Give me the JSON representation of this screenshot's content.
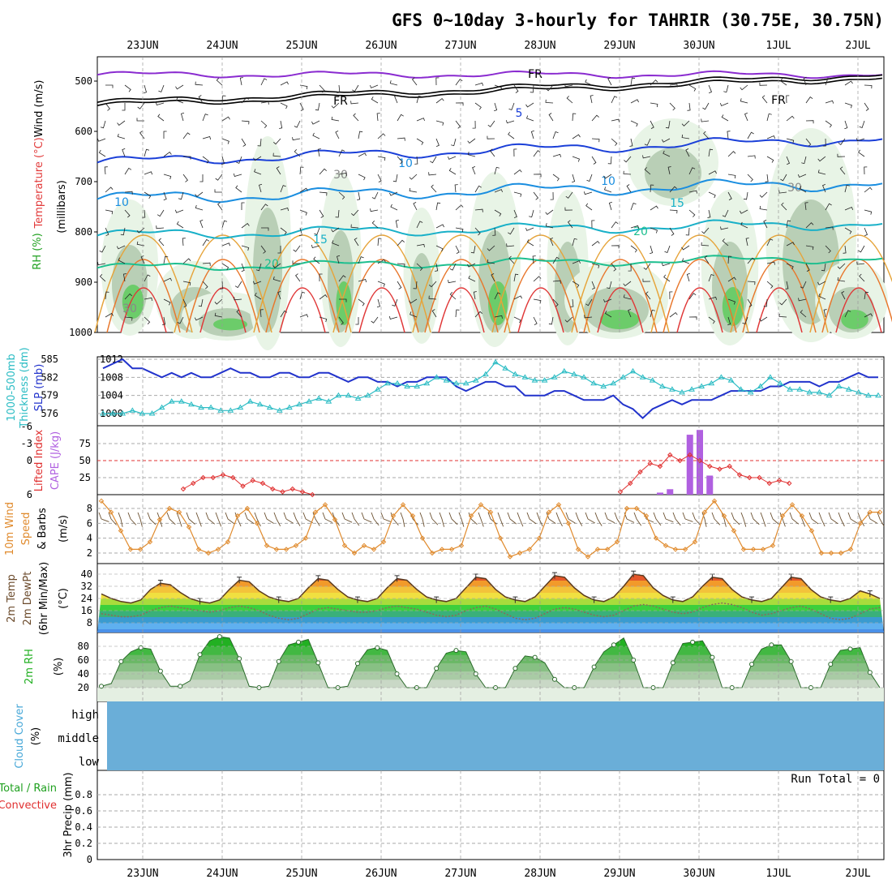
{
  "title": "GFS 0~10day 3-hourly for TAHRIR (30.75E, 30.75N)",
  "colors": {
    "wind_temp": "#000000",
    "temperature": "#e23b3b",
    "rh": "#1fa01f",
    "thickness": "#2bbcc4",
    "slp": "#2233cc",
    "lifted_index": "#e03030",
    "cape": "#b060e0",
    "wind10": "#e08a2c",
    "temp2m": "#6b4a2b",
    "rh2m": "#22b022",
    "cloud": "#6aaed8",
    "conv": "#e03030",
    "rain": "#1fa01f"
  },
  "chart_data": [
    {
      "type": "heatmap",
      "panel": "upper-air",
      "ylabel_parts": [
        "Temperature",
        " (°C)",
        "Wind (m/s)"
      ],
      "ylabel_unit": "(millibars)",
      "rh_label": "RH (%)",
      "yticks": [
        500,
        600,
        700,
        800,
        900,
        1000
      ],
      "ylim": [
        1000,
        450
      ],
      "dates": [
        "23JUN",
        "24JUN",
        "25JUN",
        "26JUN",
        "27JUN",
        "28JUN",
        "29JUN",
        "30JUN",
        "1JUL",
        "2JUL"
      ],
      "temperature_contour_labels": [
        "FR",
        "FR",
        "FR",
        "5",
        "10",
        "10",
        "10",
        "15",
        "15",
        "20",
        "20",
        "30",
        "30",
        "30"
      ]
    },
    {
      "type": "line",
      "panel": "thickness-slp",
      "ylabel_left": [
        "1000-500mb",
        "Thickness (dm)"
      ],
      "ylabel_right": "SLP (mb)",
      "yticks_thickness": [
        576,
        579,
        582,
        585
      ],
      "yticks_slp": [
        1000,
        1004,
        1008,
        1012
      ],
      "series": [
        {
          "name": "SLP (mb)",
          "values": [
            1010,
            1011,
            1012,
            1010,
            1010,
            1009,
            1008,
            1009,
            1008,
            1009,
            1008,
            1008,
            1009,
            1010,
            1009,
            1009,
            1008,
            1008,
            1009,
            1009,
            1008,
            1008,
            1009,
            1009,
            1008,
            1007,
            1008,
            1008,
            1007,
            1007,
            1006,
            1007,
            1007,
            1008,
            1008,
            1008,
            1006,
            1005,
            1006,
            1007,
            1007,
            1006,
            1006,
            1004,
            1004,
            1004,
            1005,
            1005,
            1004,
            1003,
            1003,
            1003,
            1004,
            1002,
            1001,
            999,
            1001,
            1002,
            1003,
            1002,
            1003,
            1003,
            1003,
            1004,
            1005,
            1005,
            1005,
            1005,
            1006,
            1006,
            1007,
            1007,
            1007,
            1006,
            1007,
            1007,
            1008,
            1009,
            1008,
            1008
          ]
        },
        {
          "name": "1000-500mb Thickness (dm)",
          "values": [
            576,
            576,
            576,
            576.5,
            576,
            576,
            577,
            578,
            578,
            577.5,
            577,
            577,
            576.5,
            576.5,
            577,
            578,
            577.5,
            577,
            576.5,
            577,
            577.5,
            578,
            578.5,
            578,
            579,
            579,
            578.5,
            579,
            580,
            581,
            581,
            580.5,
            580.5,
            581,
            582,
            581.5,
            581,
            581,
            581.5,
            582.5,
            584.5,
            583.5,
            582.5,
            582,
            581.5,
            581.5,
            582,
            583,
            582.5,
            582,
            581,
            580.5,
            581,
            582,
            583,
            582,
            581.5,
            580.5,
            580,
            579.5,
            580,
            580.5,
            581,
            582,
            581.5,
            580,
            579.5,
            580.5,
            582,
            581,
            580,
            580,
            579.5,
            579.5,
            579,
            580.5,
            580,
            579.5,
            579,
            579
          ]
        }
      ]
    },
    {
      "type": "bar",
      "panel": "li-cape",
      "ylabel_left": "Lifted Index",
      "ylabel_right": "CAPE (J/kg)",
      "yticks_li": [
        6,
        0,
        -3,
        -6
      ],
      "yticks_li_labels": [
        "6",
        "0",
        "-3",
        "-6"
      ],
      "yticks_cape": [
        25,
        50,
        75
      ],
      "series": [
        {
          "name": "Lifted Index",
          "x_hours": [
            24,
            27,
            30,
            33,
            36,
            39,
            42,
            45,
            48,
            51,
            54,
            57,
            60,
            63,
            156,
            159,
            162,
            165,
            168,
            171,
            174,
            177,
            180,
            183,
            186,
            189,
            192,
            195,
            198,
            201,
            204,
            207
          ],
          "values": [
            5,
            4,
            3,
            3,
            2.5,
            3,
            4.5,
            3.5,
            4,
            5,
            5.5,
            5,
            5.5,
            6,
            5.5,
            4,
            2,
            0.5,
            1,
            -1,
            0,
            -1,
            0,
            1,
            1.5,
            1,
            2.5,
            3,
            3,
            4,
            3.5,
            4
          ]
        },
        {
          "name": "CAPE (J/kg)",
          "x_hours": [
            168,
            171,
            174,
            177,
            180,
            183,
            186
          ],
          "values": [
            3,
            8,
            0,
            88,
            95,
            28,
            0
          ]
        }
      ]
    },
    {
      "type": "line",
      "panel": "wind10m",
      "ylabel_parts": [
        "10m Wind",
        "Speed",
        "& Barbs",
        "(m/s)"
      ],
      "yticks": [
        2,
        4,
        6,
        8
      ],
      "series": [
        {
          "name": "10m Wind Speed",
          "values": [
            9,
            7.5,
            5,
            2.5,
            2.5,
            3.5,
            6.5,
            8,
            7.5,
            5.5,
            2.5,
            2,
            2.5,
            3.5,
            7,
            8,
            6,
            3,
            2.5,
            2.5,
            3,
            4,
            7.5,
            8.5,
            6.5,
            3,
            2,
            3,
            2.5,
            3.5,
            7,
            8.5,
            7,
            4,
            2,
            2.5,
            2.5,
            3,
            7,
            8.5,
            7.5,
            4,
            1.5,
            2,
            2.5,
            4,
            7.5,
            8.5,
            6,
            2.5,
            1.5,
            2.5,
            2.5,
            3.5,
            8,
            8,
            7,
            4,
            3,
            2.5,
            2.5,
            3.5,
            7.5,
            9,
            7,
            5,
            2.5,
            2.5,
            2.5,
            3,
            7,
            8.5,
            7,
            5,
            2,
            2,
            2,
            2.5,
            6,
            7.5,
            7.5
          ]
        }
      ]
    },
    {
      "type": "area",
      "panel": "temp2m",
      "ylabel_parts": [
        "2m Temp",
        "2m DewPt",
        "(6hr Min/Max)",
        "(°C)"
      ],
      "yticks": [
        8,
        16,
        24,
        32,
        40
      ],
      "series": [
        {
          "name": "2m Temp",
          "values": [
            27,
            24,
            22,
            21,
            23,
            30,
            34,
            33,
            28,
            24,
            22,
            21,
            23,
            30,
            36,
            35,
            29,
            25,
            23,
            22,
            24,
            31,
            37,
            36,
            30,
            25,
            23,
            22,
            24,
            31,
            37,
            36,
            30,
            25,
            23,
            22,
            24,
            31,
            38,
            37,
            30,
            25,
            23,
            22,
            25,
            32,
            39,
            38,
            31,
            26,
            23,
            22,
            25,
            32,
            40,
            39,
            31,
            26,
            23,
            22,
            25,
            32,
            38,
            37,
            30,
            25,
            23,
            22,
            24,
            31,
            38,
            37,
            30,
            25,
            23,
            22,
            24,
            29,
            27,
            24
          ]
        },
        {
          "name": "2m DewPt",
          "values": [
            14,
            13,
            12,
            12,
            13,
            16,
            18,
            19,
            18,
            17,
            16,
            15,
            16,
            18,
            19,
            18,
            16,
            13,
            11,
            10,
            11,
            14,
            17,
            18,
            17,
            16,
            15,
            15,
            16,
            18,
            19,
            18,
            17,
            15,
            13,
            12,
            13,
            16,
            18,
            19,
            17,
            14,
            11,
            10,
            11,
            14,
            17,
            18,
            17,
            15,
            13,
            12,
            13,
            16,
            19,
            20,
            19,
            17,
            15,
            14,
            15,
            18,
            20,
            21,
            20,
            18,
            15,
            13,
            14,
            16,
            18,
            19,
            17,
            14,
            11,
            10,
            11,
            14,
            17,
            18
          ]
        }
      ]
    },
    {
      "type": "area",
      "panel": "rh2m",
      "ylabel": "2m RH",
      "yunit": "(%)",
      "yticks": [
        20,
        40,
        60,
        80
      ],
      "series": [
        {
          "name": "2m RH",
          "values": [
            22,
            26,
            58,
            72,
            78,
            76,
            44,
            22,
            22,
            30,
            68,
            88,
            94,
            92,
            62,
            22,
            18,
            22,
            58,
            82,
            86,
            90,
            56,
            20,
            18,
            22,
            55,
            75,
            78,
            74,
            40,
            16,
            14,
            16,
            48,
            70,
            74,
            72,
            40,
            16,
            15,
            20,
            48,
            66,
            64,
            56,
            32,
            14,
            12,
            18,
            50,
            72,
            82,
            92,
            60,
            18,
            14,
            18,
            56,
            84,
            86,
            88,
            64,
            20,
            15,
            20,
            54,
            76,
            82,
            82,
            58,
            20,
            14,
            18,
            54,
            74,
            76,
            78,
            42,
            15
          ]
        }
      ]
    },
    {
      "type": "area",
      "panel": "cloud",
      "ylabel": "Cloud Cover",
      "yunit": "(%)",
      "levels": [
        "high",
        "middle",
        "low"
      ]
    },
    {
      "type": "bar",
      "panel": "precip",
      "ylabel_parts": [
        "Total / Rain",
        "Convective"
      ],
      "yunit": "3hr Precip (mm)",
      "yticks": [
        0,
        0.2,
        0.4,
        0.6,
        0.8
      ],
      "run_total_label": "Run Total = 0",
      "values": []
    }
  ]
}
